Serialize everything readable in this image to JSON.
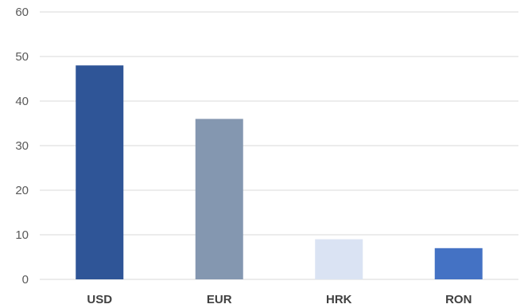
{
  "chart_data": {
    "type": "bar",
    "categories": [
      "USD",
      "EUR",
      "HRK",
      "RON"
    ],
    "values": [
      48,
      36,
      9,
      7
    ],
    "colors": [
      "#2f5597",
      "#8497b0",
      "#dae3f3",
      "#4472c4"
    ],
    "title": "",
    "xlabel": "",
    "ylabel": "",
    "ylim": [
      0,
      60
    ],
    "yticks": [
      "0",
      "10",
      "20",
      "30",
      "40",
      "50",
      "60"
    ],
    "grid": true,
    "legend": "none"
  }
}
